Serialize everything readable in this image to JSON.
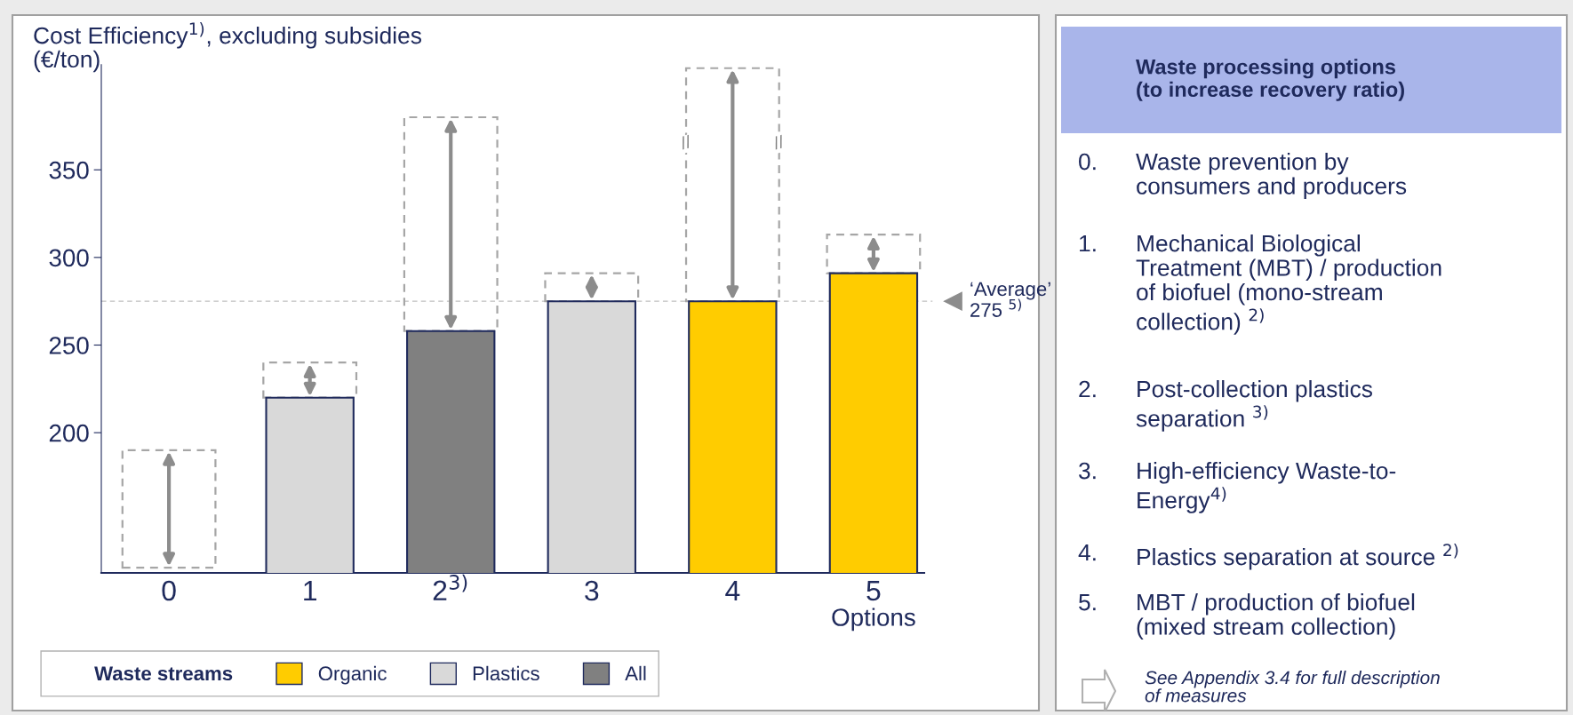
{
  "chart_data": [
    {
      "type": "bar",
      "title": "Cost Efficiency$^{1)}$, excluding subsidies\n(€/ton)",
      "xlabel": "Options",
      "categories": [
        "0",
        "1",
        "2$^{3)}$",
        "3",
        "4",
        "5"
      ],
      "series": [
        {
          "type": "bar",
          "color": "#a6a6a6",
          "line_style": "dashed",
          "base": [
            123,
            220,
            258,
            275,
            275,
            291
          ],
          "values": [
            67,
            20,
            122,
            16,
            133,
            22
          ]
        },
        {
          "name": "Organic",
          "color": "#ffcc00",
          "values": [
            null,
            null,
            null,
            null,
            275,
            291
          ]
        },
        {
          "name": "Plastics",
          "color": "#d9d9d9",
          "values": [
            null,
            220,
            null,
            275,
            null,
            null
          ]
        },
        {
          "name": "All",
          "color": "#808080",
          "values": [
            null,
            null,
            258,
            null,
            null,
            null
          ]
        }
      ],
      "ylim": [
        120,
        410
      ],
      "yticks": [
        200,
        250,
        300,
        350
      ],
      "legend": "bottom",
      "legend_title": "Waste streams",
      "ref_lines": [
        {
          "axis": "y",
          "value": 275,
          "label": "‘Average’\n275 $^{5)}$",
          "color": "#bfbfbf",
          "line_style": "dashed"
        }
      ],
      "annotations": [
        "//",
        "//"
      ]
    },
    {
      "type": "other",
      "title": "Waste processing options\n(to increase recovery ratio)",
      "annotations": [
        "0. Waste prevention by\nconsumers and producers",
        "1. Mechanical Biological\nTreatment (MBT) / production\nof biofuel (mono-stream\ncollection) $^{2)}$",
        "2. Post-collection plastics\nseparation $^{3)}$",
        "3. High-efficiency Waste-to-\nEnergy$^{4)}$",
        "4. Plastics separation at source $^{2)}$",
        "5. MBT / production of biofuel\n(mixed stream collection)",
        "See Appendix 3.4 for full description\nof measures"
      ]
    }
  ]
}
